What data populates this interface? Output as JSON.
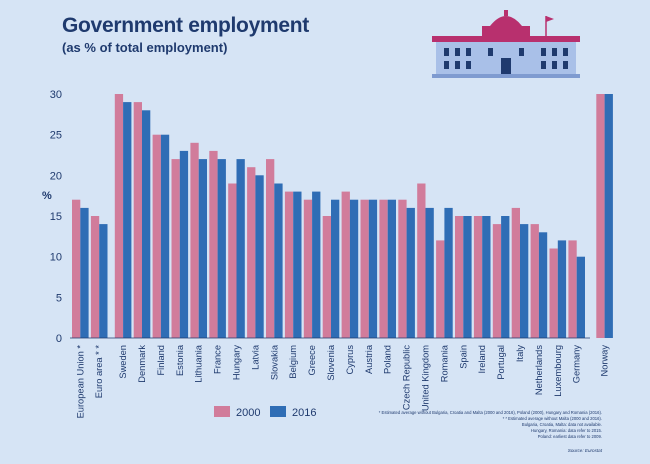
{
  "title": "Government employment",
  "subtitle": "(as % of total employment)",
  "legend": {
    "s2000": "2000",
    "s2016": "2016"
  },
  "notes": [
    "* Estimated average without Bulgaria, Croatia and Malta (2000 and 2016), Poland (2000), Hungary and Romania (2016).",
    "* * Estimated average without Malta (2000 and 2016).",
    "Bulgaria, Croatia, Malta: data not available.",
    "Hungary, Romania: data refer to 2015.",
    "Poland: earliest data refer to 2009."
  ],
  "source": "Source: Eurostat",
  "colors": {
    "s2000": "#d17c9b",
    "s2016": "#2f6db5",
    "text": "#1f3a6e",
    "background": "#d6e4f5",
    "building_roof": "#b8306e",
    "building_wall": "#a9c0e8"
  },
  "chart_data": {
    "type": "bar",
    "ylabel": "%",
    "ylim": [
      0,
      30
    ],
    "yticks": [
      0,
      5,
      10,
      15,
      20,
      25,
      30
    ],
    "grid": false,
    "legend_position": "bottom-left",
    "categories": [
      "European Union *",
      "Euro area * *",
      "Sweden",
      "Denmark",
      "Finland",
      "Estonia",
      "Lithuania",
      "France",
      "Hungary",
      "Latvia",
      "Slovakia",
      "Belgium",
      "Greece",
      "Slovenia",
      "Cyprus",
      "Austria",
      "Poland",
      "Czech Republic",
      "United Kingdom",
      "Romania",
      "Spain",
      "Ireland",
      "Portugal",
      "Italy",
      "Netherlands",
      "Luxembourg",
      "Germany",
      "Norway"
    ],
    "series": [
      {
        "name": "2000",
        "values": [
          17,
          15,
          30,
          29,
          25,
          22,
          24,
          23,
          19,
          21,
          22,
          18,
          17,
          15,
          18,
          17,
          17,
          17,
          19,
          12,
          15,
          15,
          14,
          16,
          14,
          11,
          12,
          30
        ]
      },
      {
        "name": "2016",
        "values": [
          16,
          14,
          29,
          28,
          25,
          23,
          22,
          22,
          22,
          20,
          19,
          18,
          18,
          17,
          17,
          17,
          17,
          16,
          16,
          16,
          15,
          15,
          15,
          14,
          13,
          12,
          10,
          30
        ]
      }
    ]
  }
}
